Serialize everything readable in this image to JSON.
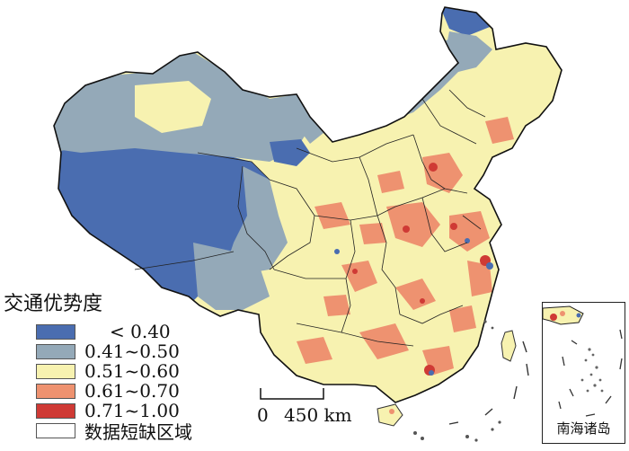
{
  "legend": {
    "title": "交通优势度",
    "items": [
      {
        "label": "< 0.40",
        "color": "#4a6db0"
      },
      {
        "label": "0.41~0.50",
        "color": "#94a9b8"
      },
      {
        "label": "0.51~0.60",
        "color": "#f7f2b0"
      },
      {
        "label": "0.61~0.70",
        "color": "#ee9270"
      },
      {
        "label": "0.71~1.00",
        "color": "#cf3a35"
      },
      {
        "label": "数据短缺区域",
        "color": "#ffffff"
      }
    ]
  },
  "scale": {
    "zero": "0",
    "distance": "450 km"
  },
  "inset": {
    "label": "南海诸岛"
  }
}
